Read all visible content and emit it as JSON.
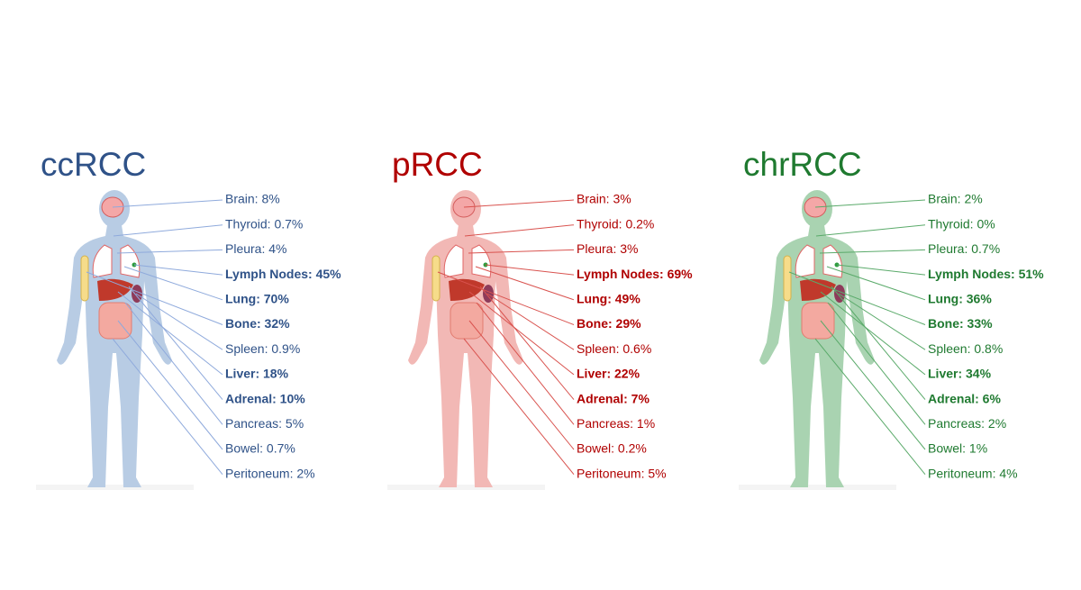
{
  "panels": [
    {
      "title": "ccRCC",
      "color": "#2f5288",
      "line_color": "#8faadc",
      "body_color": "#b8cce4",
      "items": [
        {
          "text": "Brain: 8%",
          "bold": false
        },
        {
          "text": "Thyroid: 0.7%",
          "bold": false
        },
        {
          "text": "Pleura: 4%",
          "bold": false
        },
        {
          "text": "Lymph Nodes: 45%",
          "bold": true
        },
        {
          "text": "Lung: 70%",
          "bold": true
        },
        {
          "text": "Bone: 32%",
          "bold": true
        },
        {
          "text": "Spleen: 0.9%",
          "bold": false
        },
        {
          "text": "Liver: 18%",
          "bold": true
        },
        {
          "text": "Adrenal: 10%",
          "bold": true
        },
        {
          "text": "Pancreas: 5%",
          "bold": false
        },
        {
          "text": "Bowel: 0.7%",
          "bold": false
        },
        {
          "text": "Peritoneum: 2%",
          "bold": false
        }
      ]
    },
    {
      "title": "pRCC",
      "color": "#b00000",
      "line_color": "#d9534f",
      "body_color": "#f2b8b5",
      "items": [
        {
          "text": "Brain: 3%",
          "bold": false
        },
        {
          "text": "Thyroid: 0.2%",
          "bold": false
        },
        {
          "text": "Pleura: 3%",
          "bold": false
        },
        {
          "text": "Lymph Nodes: 69%",
          "bold": true
        },
        {
          "text": "Lung: 49%",
          "bold": true
        },
        {
          "text": "Bone: 29%",
          "bold": true
        },
        {
          "text": "Spleen: 0.6%",
          "bold": false
        },
        {
          "text": "Liver: 22%",
          "bold": true
        },
        {
          "text": "Adrenal: 7%",
          "bold": true
        },
        {
          "text": "Pancreas: 1%",
          "bold": false
        },
        {
          "text": "Bowel: 0.2%",
          "bold": false
        },
        {
          "text": "Peritoneum: 5%",
          "bold": false
        }
      ]
    },
    {
      "title": "chrRCC",
      "color": "#1f7a30",
      "line_color": "#5aaa6a",
      "body_color": "#a9d3b1",
      "items": [
        {
          "text": "Brain: 2%",
          "bold": false
        },
        {
          "text": "Thyroid: 0%",
          "bold": false
        },
        {
          "text": "Pleura: 0.7%",
          "bold": false
        },
        {
          "text": "Lymph Nodes: 51%",
          "bold": true
        },
        {
          "text": "Lung: 36%",
          "bold": true
        },
        {
          "text": "Bone: 33%",
          "bold": true
        },
        {
          "text": "Spleen: 0.8%",
          "bold": false
        },
        {
          "text": "Liver: 34%",
          "bold": true
        },
        {
          "text": "Adrenal: 6%",
          "bold": true
        },
        {
          "text": "Pancreas: 2%",
          "bold": false
        },
        {
          "text": "Bowel: 1%",
          "bold": false
        },
        {
          "text": "Peritoneum: 4%",
          "bold": false
        }
      ]
    }
  ]
}
